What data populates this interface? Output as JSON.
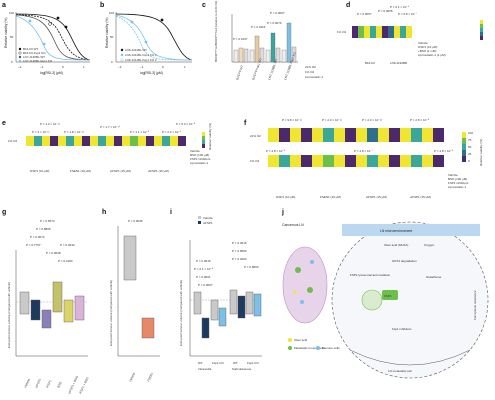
{
  "panels": {
    "a": {
      "label": "a",
      "ylabel": "Relative viability (%)",
      "xlabel": "log[RSL3] (μM)",
      "xticks": [
        "−2",
        "−1",
        "0",
        "1"
      ],
      "yticks": [
        "0",
        "50",
        "100"
      ],
      "legend": [
        "B16-F0 WT",
        "B16-F0 Fsp1 KO",
        "LN7-1136BL WT",
        "LN7-1136BL Fsp1 KO"
      ]
    },
    "b": {
      "label": "b",
      "ylabel": "Relative viability (%)",
      "xlabel": "log[RSL3] (μM)",
      "xticks": [
        "−2",
        "−1",
        "0",
        "1"
      ],
      "yticks": [
        "0",
        "50",
        "100"
      ],
      "legend": [
        "LN6-1311BL WT",
        "LN6-1311BL Fsp1 KO 1",
        "LN6-1311BL Fsp1 KO 2"
      ]
    },
    "c": {
      "label": "c",
      "ylabel": "BODIPY^ox/BODIPY^red (relative to 21% O2)",
      "pvalues": [
        "P = 0.1667",
        "P = 0.0115",
        "P = 0.0076",
        "P = 0.0007"
      ],
      "groups": [
        "B16-F0 WT",
        "B16-F0 Fsp1 KO",
        "LN7-1136BL WT",
        "LN7-1136BL Fsp1 KO"
      ],
      "conditions": [
        "21% O2",
        "1% O2",
        "Liproxstatin-1"
      ]
    },
    "d": {
      "label": "d",
      "pvalues": [
        "P = 0.1 × 10⁻⁶",
        "P = 0.0057",
        "P = 0.0005",
        "P = 9.8 × 10⁻⁷"
      ],
      "groups": [
        "B16-F0",
        "LN6-1194BR"
      ],
      "condition_label": "1% O2",
      "row_labels": [
        "Vehicle",
        "iFSP1 (10 μM)",
        "+BSO (1 mM)",
        "Liproxstatin-1 (1 μM)"
      ]
    },
    "e": {
      "label": "e",
      "row_label": "1% O2",
      "pvalues": [
        "P = 1.2 × 10⁻¹¹",
        "P = 3 × 10⁻¹²",
        "P = 1.8 × 10⁻¹¹",
        "P = 1.7 × 10⁻¹⁰",
        "P = 1.1 × 10⁻⁸",
        "P = 2.2 × 10⁻⁹",
        "P = 5.3 × 10⁻⁸"
      ],
      "row_labels": [
        "Vehicle",
        "BSO (100 μM)",
        "FSP1 inhibitors",
        "Liproxstatin-1"
      ],
      "drugs": [
        "iFSP1 (10 μM)",
        "FSEN1 (10 μM)",
        "icFSP1 (15 μM)",
        "viFSP1 (15 μM)"
      ],
      "colorbar_label": "Relative viability (%)"
    },
    "f": {
      "label": "f",
      "row_labels_top": [
        "21% O2",
        "1% O2"
      ],
      "pvalues": [
        "P = 9.8 × 10⁻¹¹",
        "P = 2.9 × 10⁻¹¹",
        "P = 2.9 × 10⁻¹²",
        "P = 2.8 × 10⁻⁸",
        "P = 4.8 × 10⁻⁹",
        "P = 4.8 × 10⁻⁷",
        "P = 4.8 × 10⁻⁹"
      ],
      "row_labels": [
        "Vehicle",
        "BSO (100 μM)",
        "FSP1 inhibitors",
        "Liproxstatin-1"
      ],
      "drugs": [
        "iFSP1 (10 μM)",
        "FSEN1 (10 μM)",
        "icFSP1 (15 μM)",
        "viFSP1 (15 μM)"
      ],
      "colorbar_ticks": [
        "100",
        "75",
        "50",
        "25",
        "0"
      ],
      "colorbar_label": "Relative viability (%)"
    },
    "g": {
      "label": "g",
      "ylabel": "End-point tumour volume (compared with vehicle)",
      "pvalues": [
        "P = 0.6573",
        "P = 0.8805",
        "P = 0.0074",
        "P = 0.7757",
        "P = 0.0038",
        "P = 0.0232",
        "P = 0.4184"
      ],
      "groups": [
        "Vehicle",
        "viFSP1",
        "iFSP1",
        "BSO",
        "viFSP1 + BSO",
        "iFSP1 + BSO"
      ]
    },
    "h": {
      "label": "h",
      "ylabel": "End-point tumour volume (compared with vehicle)",
      "pvalues": [
        "P = 0.0036"
      ],
      "groups": [
        "Vehicle",
        "FSEN1"
      ]
    },
    "i": {
      "label": "i",
      "ylabel": "End-point tumour volume (compared with vehicle)",
      "legend": [
        "Vehicle",
        "viFSP1"
      ],
      "pvalues": [
        "P = 0.0015",
        "P = 2.1 × 10⁻⁵",
        "P = 0.0001",
        "P = 0.0007",
        "P = 0.4516",
        "P = 0.6800",
        "P = 0.0403",
        "P = 0.8663"
      ],
      "groups": [
        "WT",
        "Fsp1 KO",
        "WT",
        "Fsp1 KO"
      ],
      "sites": [
        "Intranodal",
        "Subcutaneous"
      ]
    },
    "j": {
      "label": "j",
      "cancerous_ln": "Cancerous LN",
      "ln_microenvironment": "LN microenvironment",
      "oleic_acid": "Oleic acid (MUFA)",
      "oxygen": "Oxygen",
      "gpx4": "GPX4 degradation",
      "glutathione": "Glutathione",
      "fsp1_acc": "FSP1 lysosomal accumulation",
      "fsp1": "FSP1",
      "ferroptosis_resistance": "Ferroptosis resistance",
      "fsp1_inh": "Fsp1 inhibitors",
      "ln_metastatic_cell": "LN metastatic cell",
      "legend": [
        "Oleic acid",
        "Metastatic tumour cells",
        "Immune cells"
      ]
    }
  },
  "colors": {
    "navy": "#1f3a5f",
    "lightblue": "#7cc0e6",
    "teal": "#3aa79a",
    "green": "#6cbf4a",
    "yellow": "#f0e530",
    "purple": "#4a2a6b",
    "olive": "#c4c26a",
    "salmon": "#e6886a"
  }
}
